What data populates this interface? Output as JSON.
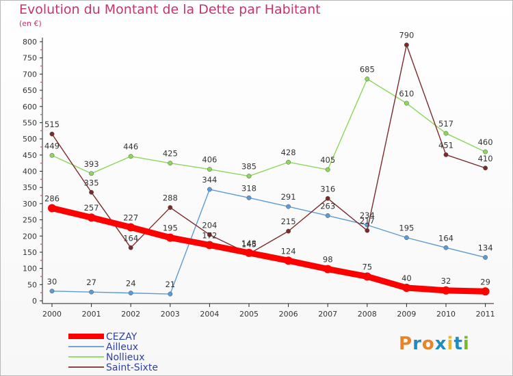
{
  "header": {
    "title": "Evolution du Montant de la Dette par Habitant",
    "unit": "(en €)"
  },
  "logo": {
    "text": "Proxiti",
    "letters": [
      "P",
      "r",
      "o",
      "x",
      "i",
      "t",
      "i"
    ],
    "colors": [
      "#e8832a",
      "#1e8bc3",
      "#e8832a",
      "#1e8bc3",
      "#e8b82a",
      "#1e8bc3",
      "#7ab829"
    ]
  },
  "chart_data": {
    "type": "line",
    "title": "Evolution du Montant de la Dette par Habitant",
    "subtitle": "(en €)",
    "x": [
      "2000",
      "2001",
      "2002",
      "2003",
      "2004",
      "2005",
      "2006",
      "2007",
      "2008",
      "2009",
      "2010",
      "2011"
    ],
    "yticks": [
      0,
      50,
      100,
      150,
      200,
      250,
      300,
      350,
      400,
      450,
      500,
      550,
      600,
      650,
      700,
      750,
      800
    ],
    "ylim": [
      0,
      800
    ],
    "grid": false,
    "legend_position": "bottom-left",
    "series": [
      {
        "name": "CEZAY",
        "color": "#ff0000",
        "values": [
          286,
          257,
          227,
          195,
          172,
          148,
          124,
          98,
          75,
          40,
          32,
          29
        ],
        "labels": [
          "286",
          "257",
          "227",
          "195",
          "172",
          "148",
          "124",
          "98",
          "75",
          "40",
          "32",
          "29"
        ]
      },
      {
        "name": "Ailleux",
        "color": "#5b9bd5",
        "values": [
          30,
          27,
          24,
          21,
          344,
          318,
          291,
          263,
          234,
          195,
          164,
          134
        ],
        "labels": [
          "30",
          "27",
          "24",
          "21",
          "344",
          "318",
          "291",
          "263",
          "234",
          "195",
          "164",
          "134"
        ]
      },
      {
        "name": "Nollieux",
        "color": "#8cd65a",
        "values": [
          449,
          393,
          446,
          425,
          406,
          385,
          428,
          405,
          685,
          610,
          517,
          460
        ],
        "labels": [
          "449",
          "393",
          "446",
          "425",
          "406",
          "385",
          "428",
          "405",
          "685",
          "610",
          "517",
          "460"
        ]
      },
      {
        "name": "Saint-Sixte",
        "color": "#7a2a2a",
        "values": [
          515,
          335,
          164,
          288,
          204,
          145,
          215,
          316,
          217,
          790,
          451,
          410
        ],
        "labels": [
          "515",
          "335",
          "164",
          "288",
          "204",
          "145",
          "215",
          "316",
          "217",
          "790",
          "451",
          "410"
        ]
      }
    ]
  }
}
